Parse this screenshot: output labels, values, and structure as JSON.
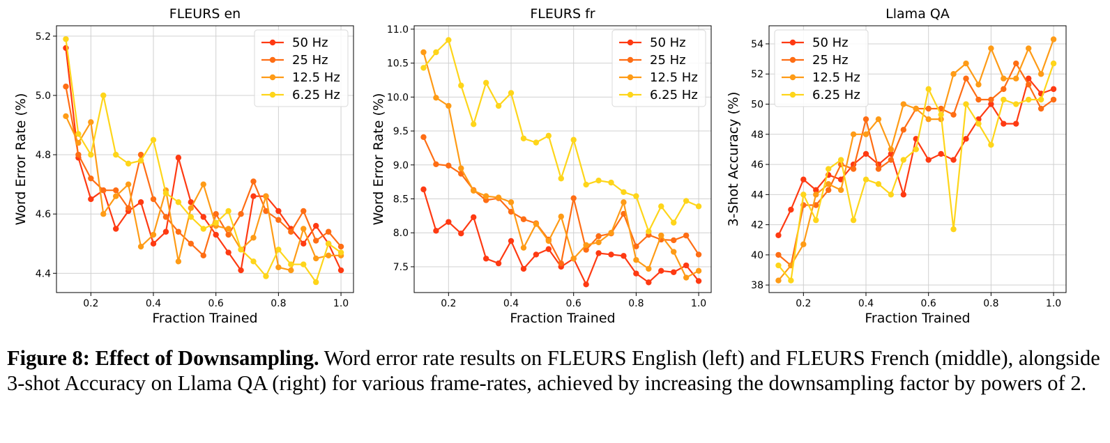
{
  "caption": {
    "label": "Figure 8: Effect of Downsampling.",
    "text": " Word error rate results on FLEURS English (left) and FLEURS French (middle), alongside 3-shot Accuracy on Llama QA (right) for various frame-rates, achieved by increasing the downsampling factor by powers of 2."
  },
  "chart_data": [
    {
      "type": "line",
      "title": "FLEURS en",
      "xlabel": "Fraction Trained",
      "ylabel": "Word Error Rate (%)",
      "xlim": [
        0.09,
        1.04
      ],
      "ylim": [
        4.335,
        5.235
      ],
      "xticks": [
        0.2,
        0.4,
        0.6,
        0.8,
        1.0
      ],
      "yticks": [
        4.4,
        4.6,
        4.8,
        5.0,
        5.2
      ],
      "xtick_labels": [
        "0.2",
        "0.4",
        "0.6",
        "0.8",
        "1.0"
      ],
      "ytick_labels": [
        "4.4",
        "4.6",
        "4.8",
        "5.0",
        "5.2"
      ],
      "grid": true,
      "legend_position": "top-right",
      "x": [
        0.12,
        0.16,
        0.2,
        0.24,
        0.28,
        0.32,
        0.36,
        0.4,
        0.44,
        0.48,
        0.52,
        0.56,
        0.6,
        0.64,
        0.68,
        0.72,
        0.76,
        0.8,
        0.84,
        0.88,
        0.92,
        0.96,
        1.0
      ],
      "series": [
        {
          "name": "50 Hz",
          "color": "#fe3a12",
          "values": [
            5.16,
            4.79,
            4.65,
            4.68,
            4.55,
            4.61,
            4.64,
            4.5,
            4.54,
            4.79,
            4.64,
            4.59,
            4.53,
            4.47,
            4.41,
            4.66,
            4.66,
            4.61,
            4.55,
            4.5,
            4.56,
            4.5,
            4.41
          ]
        },
        {
          "name": "25 Hz",
          "color": "#fe6d14",
          "values": [
            5.03,
            4.8,
            4.72,
            4.68,
            4.68,
            4.62,
            4.8,
            4.65,
            4.59,
            4.54,
            4.5,
            4.46,
            4.6,
            4.53,
            4.6,
            4.71,
            4.61,
            4.58,
            4.54,
            4.61,
            4.51,
            4.54,
            4.49
          ]
        },
        {
          "name": "12.5 Hz",
          "color": "#fe9b16",
          "values": [
            4.93,
            4.84,
            4.91,
            4.6,
            4.66,
            4.7,
            4.49,
            4.53,
            4.68,
            4.44,
            4.62,
            4.7,
            4.56,
            4.55,
            4.48,
            4.52,
            4.66,
            4.42,
            4.41,
            4.55,
            4.45,
            4.46,
            4.46
          ]
        },
        {
          "name": "6.25 Hz",
          "color": "#fed51a",
          "values": [
            5.19,
            4.87,
            4.8,
            5.0,
            4.8,
            4.77,
            4.78,
            4.85,
            4.67,
            4.64,
            4.59,
            4.55,
            4.57,
            4.61,
            4.48,
            4.44,
            4.39,
            4.48,
            4.43,
            4.43,
            4.37,
            4.5,
            4.47
          ]
        }
      ]
    },
    {
      "type": "line",
      "title": "FLEURS fr",
      "xlabel": "Fraction Trained",
      "ylabel": "Word Error Rate (%)",
      "xlim": [
        0.09,
        1.04
      ],
      "ylim": [
        7.12,
        11.05
      ],
      "xticks": [
        0.2,
        0.4,
        0.6,
        0.8,
        1.0
      ],
      "yticks": [
        7.5,
        8.0,
        8.5,
        9.0,
        9.5,
        10.0,
        10.5,
        11.0
      ],
      "xtick_labels": [
        "0.2",
        "0.4",
        "0.6",
        "0.8",
        "1.0"
      ],
      "ytick_labels": [
        "7.5",
        "8.0",
        "8.5",
        "9.0",
        "9.5",
        "10.0",
        "10.5",
        "11.0"
      ],
      "grid": true,
      "legend_position": "top-right",
      "x": [
        0.12,
        0.16,
        0.2,
        0.24,
        0.28,
        0.32,
        0.36,
        0.4,
        0.44,
        0.48,
        0.52,
        0.56,
        0.6,
        0.64,
        0.68,
        0.72,
        0.76,
        0.8,
        0.84,
        0.88,
        0.92,
        0.96,
        1.0
      ],
      "series": [
        {
          "name": "50 Hz",
          "color": "#fe3a12",
          "values": [
            8.64,
            8.03,
            8.16,
            7.99,
            8.23,
            7.62,
            7.55,
            7.88,
            7.47,
            7.68,
            7.76,
            7.5,
            7.62,
            7.24,
            7.7,
            7.68,
            7.66,
            7.4,
            7.27,
            7.44,
            7.42,
            7.52,
            7.29
          ]
        },
        {
          "name": "25 Hz",
          "color": "#fe6d14",
          "values": [
            9.41,
            9.01,
            8.99,
            8.87,
            8.63,
            8.48,
            8.51,
            8.31,
            8.2,
            8.14,
            7.9,
            7.55,
            8.51,
            7.75,
            7.95,
            7.99,
            8.28,
            7.8,
            7.97,
            7.9,
            7.89,
            7.96,
            7.68
          ]
        },
        {
          "name": "12.5 Hz",
          "color": "#fe9b16",
          "values": [
            10.66,
            9.99,
            9.87,
            8.95,
            8.62,
            8.54,
            8.52,
            8.45,
            7.78,
            8.13,
            7.88,
            8.24,
            7.62,
            7.82,
            7.86,
            8.0,
            8.45,
            7.6,
            7.47,
            7.96,
            7.72,
            7.34,
            7.44
          ]
        },
        {
          "name": "6.25 Hz",
          "color": "#fed51a",
          "values": [
            10.43,
            10.66,
            10.84,
            10.17,
            9.6,
            10.21,
            9.87,
            10.06,
            9.39,
            9.33,
            9.43,
            8.8,
            9.37,
            8.71,
            8.77,
            8.74,
            8.6,
            8.54,
            8.02,
            8.39,
            8.15,
            8.47,
            8.39
          ]
        }
      ]
    },
    {
      "type": "line",
      "title": "Llama QA",
      "xlabel": "Fraction Trained",
      "ylabel": "3-Shot Accuracy (%)",
      "xlim": [
        0.09,
        1.04
      ],
      "ylim": [
        37.5,
        55.2
      ],
      "xticks": [
        0.2,
        0.4,
        0.6,
        0.8,
        1.0
      ],
      "yticks": [
        38,
        40,
        42,
        44,
        46,
        48,
        50,
        52,
        54
      ],
      "xtick_labels": [
        "0.2",
        "0.4",
        "0.6",
        "0.8",
        "1.0"
      ],
      "ytick_labels": [
        "38",
        "40",
        "42",
        "44",
        "46",
        "48",
        "50",
        "52",
        "54"
      ],
      "grid": true,
      "legend_position": "top-left",
      "x": [
        0.12,
        0.16,
        0.2,
        0.24,
        0.28,
        0.32,
        0.36,
        0.4,
        0.44,
        0.48,
        0.52,
        0.56,
        0.6,
        0.64,
        0.68,
        0.72,
        0.76,
        0.8,
        0.84,
        0.88,
        0.92,
        0.96,
        1.0
      ],
      "series": [
        {
          "name": "50 Hz",
          "color": "#fe3a12",
          "values": [
            41.3,
            43.0,
            45.0,
            44.3,
            45.3,
            45.0,
            46.0,
            46.7,
            46.0,
            46.7,
            44.0,
            47.7,
            46.3,
            46.7,
            46.3,
            47.7,
            49.0,
            50.0,
            48.7,
            48.7,
            51.7,
            50.7,
            51.0
          ]
        },
        {
          "name": "25 Hz",
          "color": "#fe6d14",
          "values": [
            40.0,
            39.3,
            43.3,
            43.3,
            44.3,
            46.0,
            45.7,
            49.0,
            45.7,
            46.3,
            48.3,
            49.7,
            49.7,
            49.7,
            49.3,
            51.7,
            50.3,
            50.3,
            51.0,
            52.7,
            51.3,
            49.7,
            50.3
          ]
        },
        {
          "name": "12.5 Hz",
          "color": "#fe9b16",
          "values": [
            38.3,
            39.3,
            40.7,
            44.0,
            44.7,
            44.3,
            48.0,
            48.0,
            49.0,
            47.0,
            50.0,
            49.7,
            49.0,
            49.0,
            52.0,
            52.7,
            51.3,
            53.7,
            51.7,
            51.7,
            53.7,
            52.0,
            54.3
          ]
        },
        {
          "name": "6.25 Hz",
          "color": "#fed51a",
          "values": [
            39.3,
            38.3,
            44.0,
            42.3,
            45.7,
            46.3,
            42.3,
            45.0,
            44.7,
            44.0,
            46.3,
            47.0,
            51.0,
            49.3,
            41.7,
            50.0,
            48.7,
            47.3,
            50.3,
            50.0,
            50.3,
            50.3,
            52.7
          ]
        }
      ]
    }
  ]
}
